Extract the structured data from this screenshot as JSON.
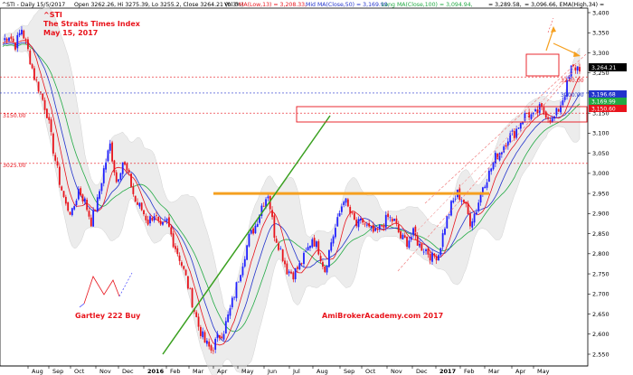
{
  "header": {
    "symbol": "^STI - Daily 15/5/2017",
    "ohlc": "Open 3262.26, Hi 3275.39, Lo 3255.2, Close 3264.21 (0.3%)",
    "vol": "Vol 0",
    "ma13": "MA(Low,13) = 3,208.33,",
    "mid_ma": "Mid MA(Close,50) = 3,169.99,",
    "long_ma": "Long MA(Close,100) = 3,094.94,",
    "extra": "= 3,289.58,",
    "ema": "= 3,096.66, EMA(High,34) ="
  },
  "title_block": {
    "line1": "^STI",
    "line2": "The Straits Times Index",
    "line3": "May 15, 2017"
  },
  "annotations": {
    "pattern": "Gartley 222 Buy",
    "watermark": "AmiBrokerAcademy.com  2017"
  },
  "level_labels": {
    "l3240": "3240.00",
    "l3200": "3200.00",
    "l3150": "3150.00",
    "l3025": "3025.00"
  },
  "price_tags": {
    "close": "3,264.21",
    "p1": "3,196.68",
    "p2": "3,169.99",
    "p3": "3,150.60"
  },
  "colors": {
    "up": "#2020ff",
    "down": "#e8141c",
    "ma_low": "#e8141c",
    "mid_ma": "#2233cc",
    "long_ma": "#22aa44",
    "band": "#dddddd",
    "orange": "#f5a020",
    "green_line": "#3aa020"
  },
  "chart_data": {
    "type": "line",
    "title": "^STI",
    "y_ticks": [
      2550,
      2600,
      2650,
      2700,
      2750,
      2800,
      2850,
      2900,
      2950,
      3000,
      3050,
      3100,
      3150,
      3200,
      3250,
      3300,
      3350,
      3400
    ],
    "y_tick_labels": [
      "2,550",
      "2,600",
      "2,650",
      "2,700",
      "2,750",
      "2,800",
      "2,850",
      "2,900",
      "2,950",
      "3,000",
      "3,050",
      "3,100",
      "3,150",
      "3,200",
      "3,250",
      "3,300",
      "3,350",
      "3,400"
    ],
    "x_labels": [
      "Aug",
      "Sep",
      "Oct",
      "Nov",
      "Dec",
      "2016",
      "Feb",
      "Mar",
      "Apr",
      "May",
      "Jun",
      "Jul",
      "Aug",
      "Sep",
      "Oct",
      "Nov",
      "Dec",
      "2017",
      "Feb",
      "Mar",
      "Apr",
      "May"
    ],
    "reference_levels": [
      3240,
      3200,
      3150,
      3025
    ],
    "resistance_level": 2950,
    "series": [
      {
        "name": "^STI Close (approx.)",
        "points": [
          [
            0,
            3330
          ],
          [
            3,
            3345
          ],
          [
            6,
            3320
          ],
          [
            9,
            3360
          ],
          [
            12,
            3305
          ],
          [
            15,
            3240
          ],
          [
            18,
            3200
          ],
          [
            21,
            3150
          ],
          [
            24,
            3060
          ],
          [
            27,
            2980
          ],
          [
            30,
            2920
          ],
          [
            33,
            2900
          ],
          [
            36,
            2960
          ],
          [
            39,
            2930
          ],
          [
            42,
            2880
          ],
          [
            45,
            2930
          ],
          [
            48,
            3010
          ],
          [
            51,
            3070
          ],
          [
            54,
            2980
          ],
          [
            57,
            3030
          ],
          [
            60,
            2990
          ],
          [
            63,
            2930
          ],
          [
            66,
            2910
          ],
          [
            69,
            2880
          ],
          [
            72,
            2900
          ],
          [
            75,
            2860
          ],
          [
            78,
            2880
          ],
          [
            81,
            2830
          ],
          [
            84,
            2790
          ],
          [
            87,
            2740
          ],
          [
            90,
            2680
          ],
          [
            93,
            2620
          ],
          [
            96,
            2580
          ],
          [
            99,
            2560
          ],
          [
            102,
            2590
          ],
          [
            105,
            2610
          ],
          [
            108,
            2660
          ],
          [
            111,
            2720
          ],
          [
            114,
            2780
          ],
          [
            117,
            2840
          ],
          [
            120,
            2870
          ],
          [
            123,
            2920
          ],
          [
            126,
            2950
          ],
          [
            129,
            2850
          ],
          [
            132,
            2810
          ],
          [
            135,
            2760
          ],
          [
            138,
            2750
          ],
          [
            141,
            2770
          ],
          [
            144,
            2800
          ],
          [
            147,
            2840
          ],
          [
            150,
            2810
          ],
          [
            153,
            2760
          ],
          [
            156,
            2830
          ],
          [
            159,
            2880
          ],
          [
            162,
            2940
          ],
          [
            165,
            2900
          ],
          [
            168,
            2870
          ],
          [
            171,
            2880
          ],
          [
            174,
            2860
          ],
          [
            177,
            2850
          ],
          [
            180,
            2870
          ],
          [
            183,
            2890
          ],
          [
            186,
            2880
          ],
          [
            189,
            2840
          ],
          [
            192,
            2830
          ],
          [
            195,
            2850
          ],
          [
            198,
            2820
          ],
          [
            201,
            2810
          ],
          [
            204,
            2790
          ],
          [
            207,
            2800
          ],
          [
            210,
            2870
          ],
          [
            213,
            2920
          ],
          [
            216,
            2950
          ],
          [
            219,
            2930
          ],
          [
            222,
            2880
          ],
          [
            225,
            2910
          ],
          [
            228,
            2970
          ],
          [
            231,
            3000
          ],
          [
            234,
            3040
          ],
          [
            237,
            3060
          ],
          [
            240,
            3090
          ],
          [
            243,
            3100
          ],
          [
            246,
            3130
          ],
          [
            249,
            3150
          ],
          [
            252,
            3140
          ],
          [
            255,
            3160
          ],
          [
            258,
            3150
          ],
          [
            261,
            3130
          ],
          [
            264,
            3160
          ],
          [
            267,
            3200
          ],
          [
            270,
            3260
          ],
          [
            273,
            3264
          ]
        ]
      }
    ]
  }
}
